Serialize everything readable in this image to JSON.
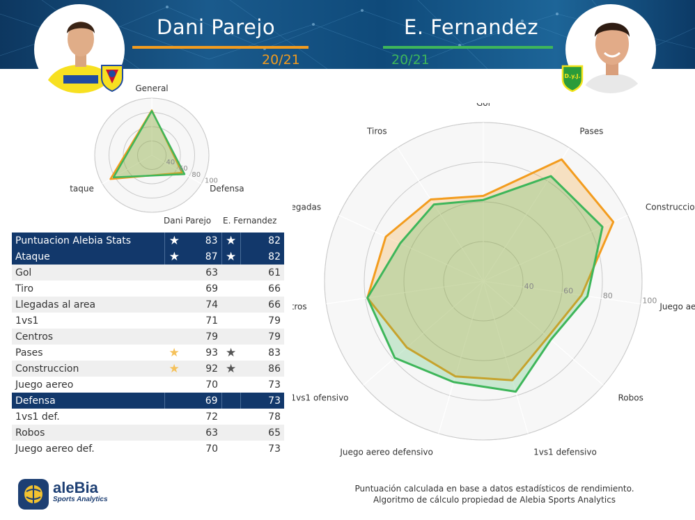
{
  "header": {
    "player_left": {
      "name": "Dani Parejo",
      "season": "20/21",
      "color": "#f39c1e"
    },
    "player_right": {
      "name": "E. Fernandez",
      "season": "20/21",
      "color": "#3eb65a"
    },
    "banner_color": "#14507f"
  },
  "crests": {
    "left_club": "Villarreal CF crest",
    "left_shirt_text": "PAMESA",
    "right_club_text": "D.y.J.",
    "right_club": "Defensa y Justicia crest"
  },
  "table": {
    "col_left": "Dani Parejo",
    "col_right": "E. Fernandez",
    "rows": [
      {
        "label": "Puntuacion Alebia Stats",
        "left": "83",
        "right": "82",
        "left_star": "★",
        "right_star": "★",
        "style": "hl"
      },
      {
        "label": "Ataque",
        "left": "87",
        "right": "82",
        "left_star": "★",
        "right_star": "★",
        "style": "hl"
      },
      {
        "label": "Gol",
        "left": "63",
        "right": "61",
        "left_star": "",
        "right_star": "",
        "style": "alt"
      },
      {
        "label": "Tiro",
        "left": "69",
        "right": "66",
        "left_star": "",
        "right_star": "",
        "style": "plain"
      },
      {
        "label": "Llegadas al area",
        "left": "74",
        "right": "66",
        "left_star": "",
        "right_star": "",
        "style": "alt"
      },
      {
        "label": "1vs1",
        "left": "71",
        "right": "79",
        "left_star": "",
        "right_star": "",
        "style": "plain"
      },
      {
        "label": "Centros",
        "left": "79",
        "right": "79",
        "left_star": "",
        "right_star": "",
        "style": "alt"
      },
      {
        "label": "Pases",
        "left": "93",
        "right": "83",
        "left_star": "★",
        "right_star": "★",
        "style": "plain"
      },
      {
        "label": "Construccion",
        "left": "92",
        "right": "86",
        "left_star": "★",
        "right_star": "★",
        "style": "alt"
      },
      {
        "label": "Juego aereo",
        "left": "70",
        "right": "73",
        "left_star": "",
        "right_star": "",
        "style": "plain"
      },
      {
        "label": "Defensa",
        "left": "69",
        "right": "73",
        "left_star": "",
        "right_star": "",
        "style": "hl"
      },
      {
        "label": "1vs1 def.",
        "left": "72",
        "right": "78",
        "left_star": "",
        "right_star": "",
        "style": "plain"
      },
      {
        "label": "Robos",
        "left": "63",
        "right": "65",
        "left_star": "",
        "right_star": "",
        "style": "alt"
      },
      {
        "label": "Juego aereo def.",
        "left": "70",
        "right": "73",
        "left_star": "",
        "right_star": "",
        "style": "plain"
      }
    ],
    "star_colors": {
      "hl": "#ffffff",
      "left": "#f5c15a",
      "right": "#555555"
    }
  },
  "chart_data": [
    {
      "type": "radar",
      "axes": [
        "General",
        "Defensa",
        "Ataque"
      ],
      "rlim": [
        20,
        100
      ],
      "ticks": [
        "40",
        "60",
        "80",
        "100"
      ],
      "series": [
        {
          "name": "Dani Parejo",
          "values": [
            83,
            69,
            87
          ],
          "color": "#f39c1e"
        },
        {
          "name": "E. Fernandez",
          "values": [
            82,
            73,
            82
          ],
          "color": "#3eb65a"
        }
      ]
    },
    {
      "type": "radar",
      "axes": [
        "Gol",
        "Pases",
        "Construccion",
        "Juego aereo",
        "Robos",
        "1vs1 defensivo",
        "Juego aereo defensivo",
        "1vs1 ofensivo",
        "Centros",
        "Llegadas",
        "Tiros"
      ],
      "rlim": [
        20,
        100
      ],
      "ticks": [
        "40",
        "60",
        "80",
        "100"
      ],
      "series": [
        {
          "name": "Dani Parejo",
          "values": [
            63,
            93,
            92,
            70,
            63,
            72,
            70,
            71,
            79,
            74,
            69
          ],
          "color": "#f39c1e"
        },
        {
          "name": "E. Fernandez",
          "values": [
            61,
            83,
            86,
            73,
            65,
            78,
            73,
            79,
            79,
            66,
            66
          ],
          "color": "#3eb65a"
        }
      ]
    }
  ],
  "footer": {
    "note_line1": "Puntuación calculada en base a datos estadísticos de rendimiento.",
    "note_line2": "Algoritmo de cálculo propiedad de Alebia Sports Analytics",
    "brand_name": "aleBia",
    "brand_sub": "Sports Analytics"
  }
}
